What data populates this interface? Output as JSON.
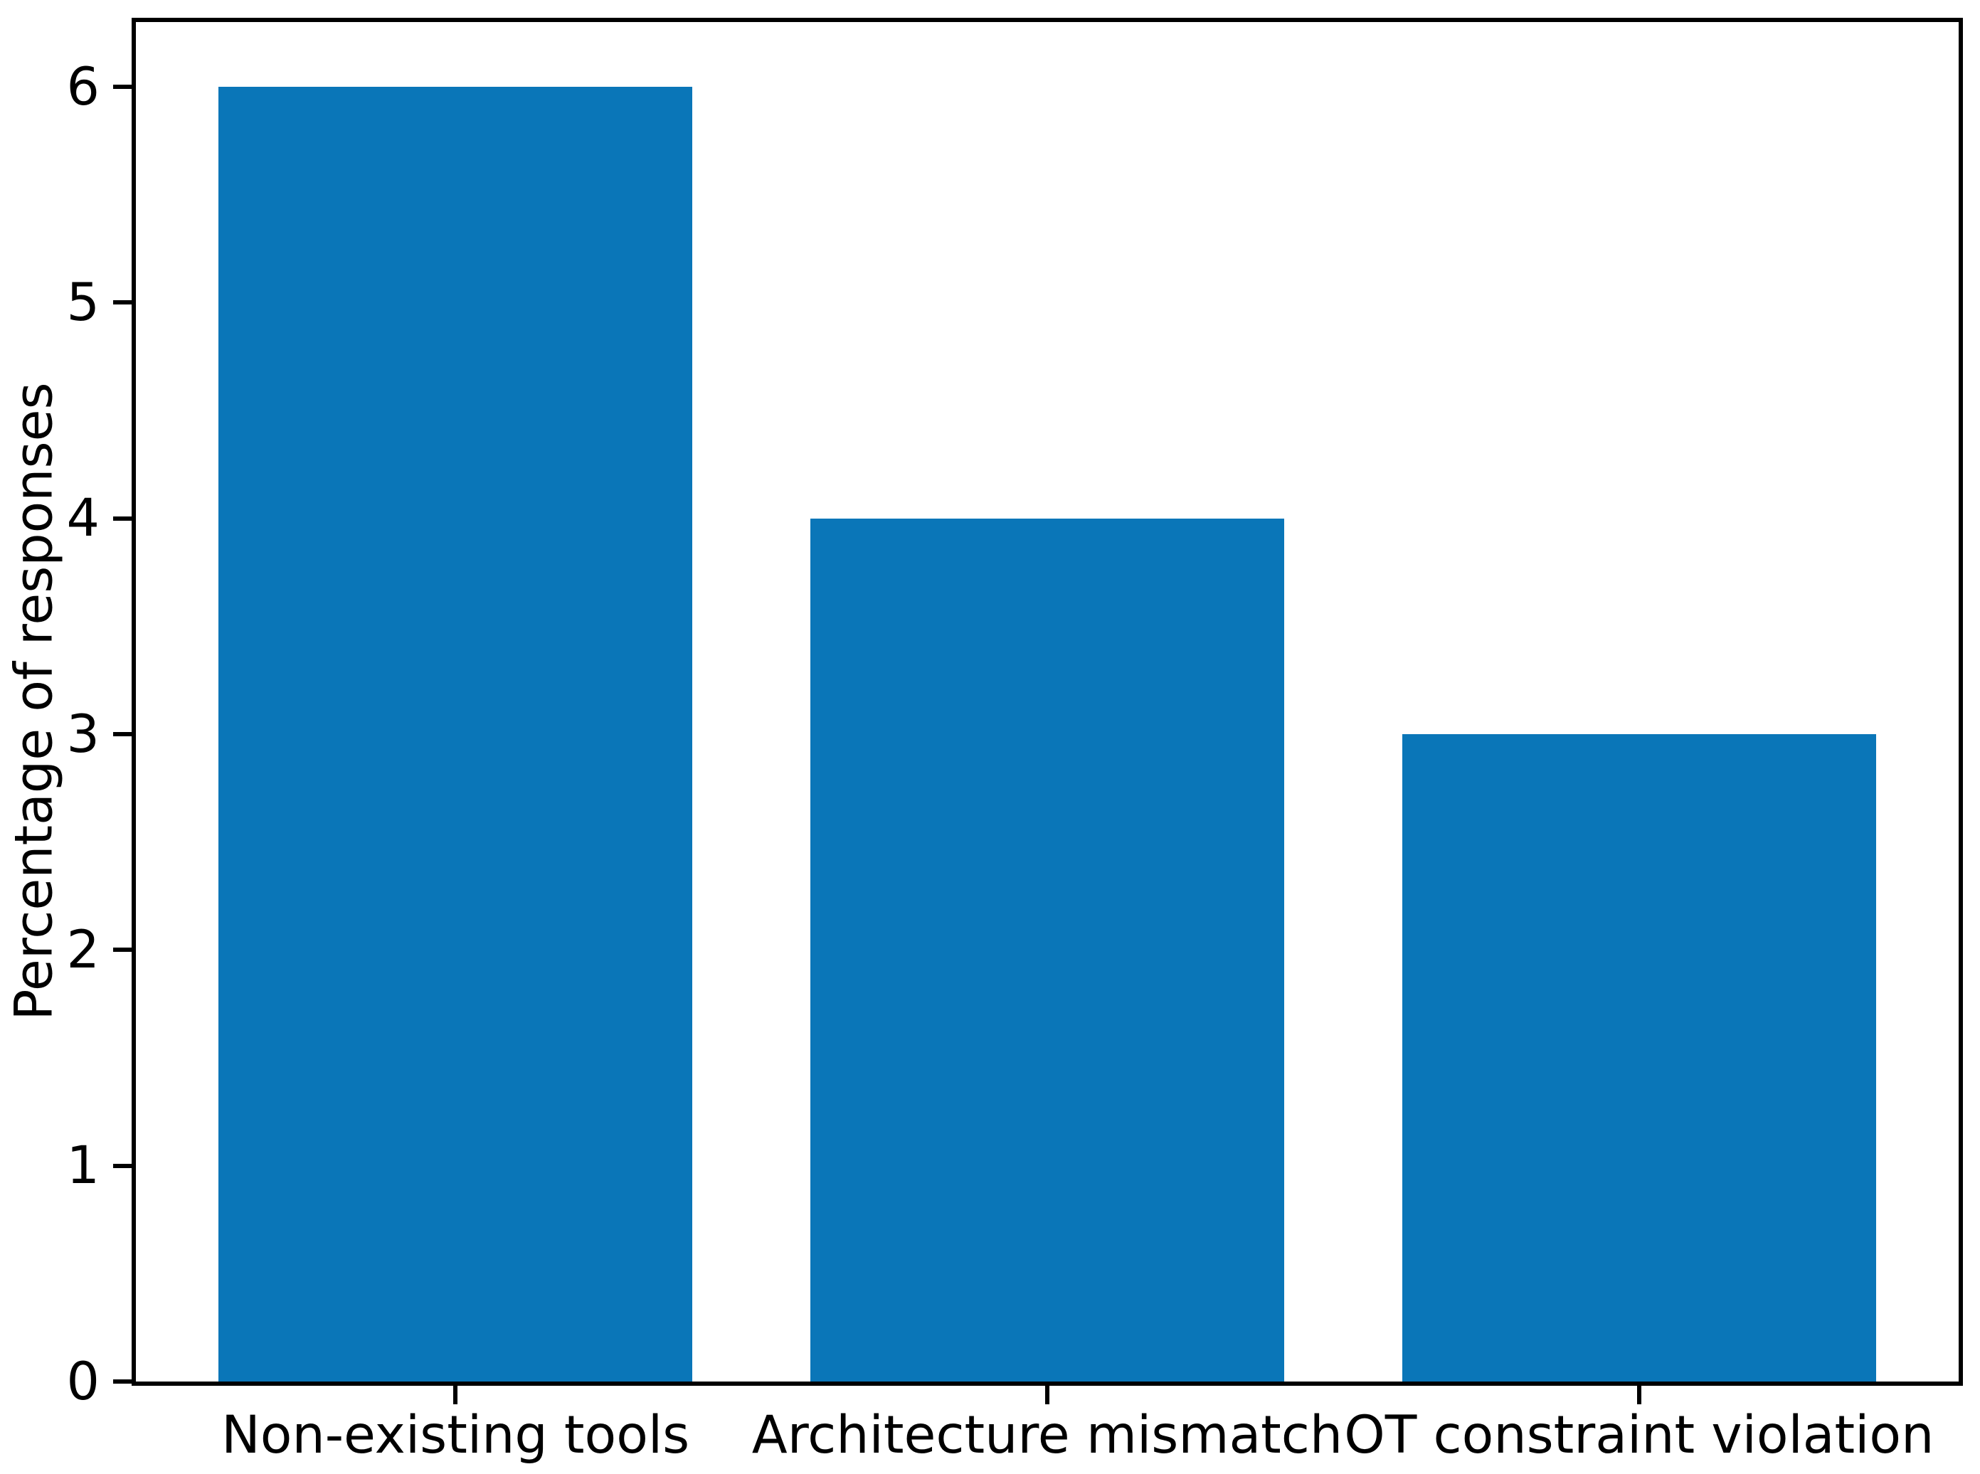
{
  "chart_data": {
    "type": "bar",
    "title": "",
    "xlabel": "",
    "ylabel": "Percentage of responses",
    "categories": [
      "Non-existing tools",
      "Architecture mismatch",
      "OT constraint violation"
    ],
    "values": [
      6,
      4,
      3
    ],
    "yticks": [
      0,
      1,
      2,
      3,
      4,
      5,
      6
    ],
    "ylim": [
      0,
      6.3
    ],
    "bar_width_fraction": 0.8,
    "bar_color": "#0a76b8",
    "axis_color": "#000000",
    "background_color": "#ffffff",
    "grid": false,
    "legend_position": "none"
  }
}
